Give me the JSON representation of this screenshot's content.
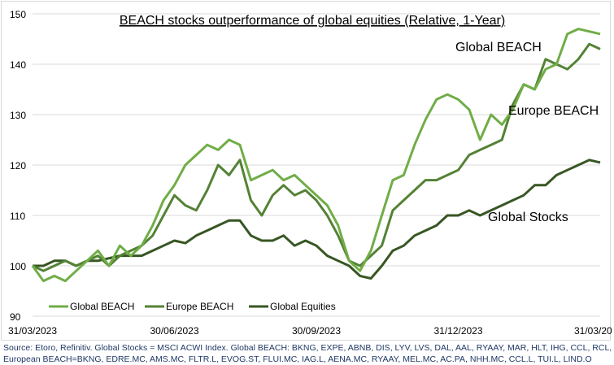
{
  "chart_data": {
    "type": "line",
    "title": "BEACH stocks outperformance of global equities (Relative, 1-Year)",
    "xlabel": "",
    "ylabel": "",
    "ylim": [
      90,
      150
    ],
    "yticks": [
      "90",
      "100",
      "110",
      "120",
      "130",
      "140",
      "150"
    ],
    "xticks": [
      "31/03/2023",
      "30/06/2023",
      "30/09/2023",
      "31/12/2023",
      "31/03/20"
    ],
    "grid": true,
    "legend_placement": "bottom-left",
    "x_unit": "weeks since 31/03/2023",
    "series": [
      {
        "name": "Global BEACH",
        "color": "#70ad47",
        "values": [
          100,
          97,
          98,
          97,
          99,
          101,
          103,
          100,
          104,
          102,
          104,
          108,
          113,
          116,
          120,
          122,
          124,
          123,
          125,
          124,
          117,
          118,
          119,
          117,
          118,
          116,
          114,
          112,
          108,
          101,
          99,
          103,
          110,
          117,
          118,
          124,
          129,
          133,
          134,
          133,
          131,
          125,
          130,
          128,
          131,
          136,
          135,
          139,
          140,
          146,
          147,
          146.5,
          146
        ]
      },
      {
        "name": "Europe BEACH",
        "color": "#548235",
        "values": [
          100,
          99,
          100,
          101,
          100,
          101,
          102,
          100,
          102,
          103,
          104,
          106,
          110,
          114,
          112,
          111,
          115,
          120,
          118,
          121,
          113,
          110,
          114,
          116,
          114,
          115,
          113,
          110,
          106,
          101,
          100,
          102,
          104,
          111,
          113,
          115,
          117,
          117,
          118,
          119,
          122,
          123,
          124,
          125,
          132,
          136,
          135,
          141,
          140,
          139,
          141,
          144,
          143
        ]
      },
      {
        "name": "Global Equities",
        "color": "#375623",
        "values": [
          100,
          100,
          101,
          101,
          100,
          101,
          101,
          101.5,
          102,
          102,
          102,
          103,
          104,
          105,
          104.5,
          106,
          107,
          108,
          109,
          109,
          106,
          105,
          105,
          106,
          104,
          105,
          104,
          102,
          101,
          100,
          98,
          97.5,
          100,
          103,
          104,
          106,
          107,
          108,
          110,
          110,
          111,
          110,
          111,
          112,
          113,
          114,
          116,
          116,
          118,
          119,
          120,
          121,
          120.5
        ]
      }
    ],
    "annotations": [
      "Global BEACH",
      "Europe BEACH",
      "Global Stocks"
    ]
  },
  "source": {
    "line1": "Source: Etoro, Refinitiv. Global Stocks = MSCI ACWI Index. Global BEACH: BKNG, EXPE, ABNB, DIS, LYV, LVS, DAL, AAL, RYAAY, MAR, HLT, IHG, CCL, RCL, NCL.",
    "line2": "European BEACH=BKNG, EDRE.MC, AMS.MC, FLTR.L, EVOG.ST, FLUI.MC, IAG.L, AENA.MC, RYAAY, MEL.MC, AC.PA, NHH.MC, CCL.L, TUI.L, LIND.O"
  }
}
